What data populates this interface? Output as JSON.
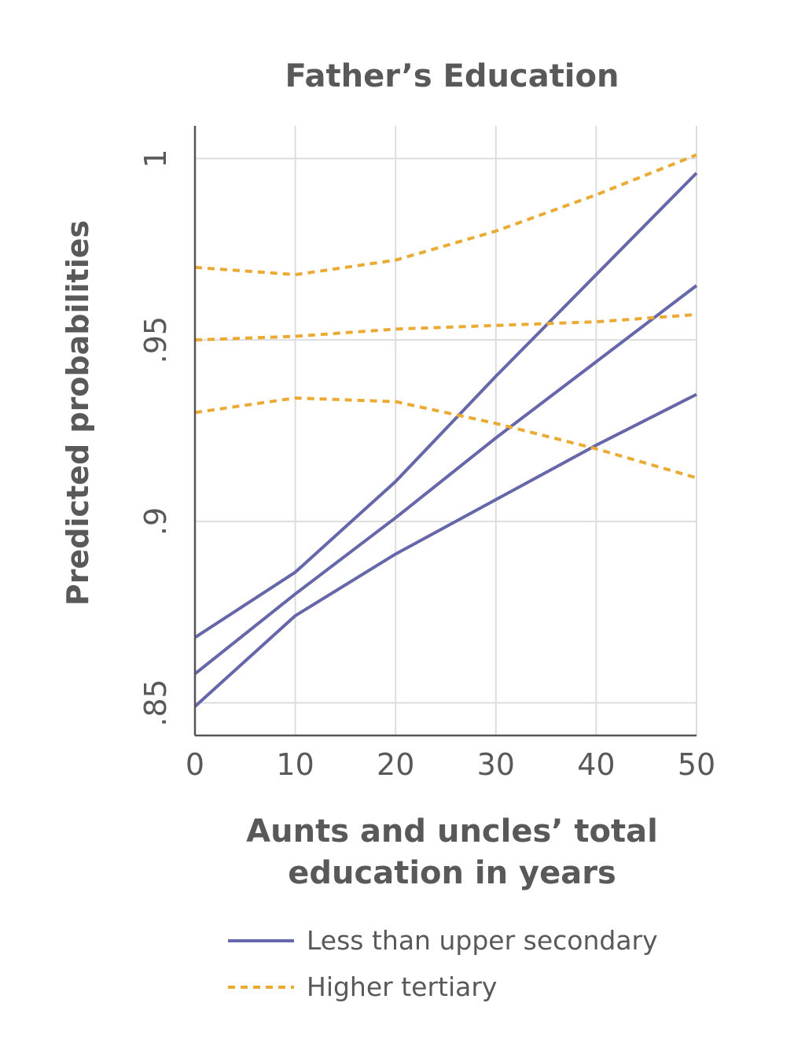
{
  "chart_data": {
    "type": "line",
    "title": "Father’s Education",
    "xlabel_lines": [
      "Aunts and uncles’ total",
      "education in years"
    ],
    "ylabel": "Predicted probabilities",
    "xlim": [
      0,
      50
    ],
    "ylim": [
      0.841,
      1.009
    ],
    "x_ticks": [
      0,
      10,
      20,
      30,
      40,
      50
    ],
    "x_tick_labels": [
      "0",
      "10",
      "20",
      "30",
      "40",
      "50"
    ],
    "y_ticks": [
      0.85,
      0.9,
      0.95,
      1
    ],
    "y_tick_labels": [
      ".85",
      ".9",
      ".95",
      "1"
    ],
    "grid": true,
    "legend_position": "bottom",
    "x": [
      0,
      10,
      20,
      30,
      40,
      50
    ],
    "series": [
      {
        "name": "Less than upper secondary",
        "style": "solid",
        "color": "#6666aa",
        "lines": [
          {
            "role": "upper",
            "values": [
              0.868,
              0.886,
              0.911,
              0.94,
              0.968,
              0.996
            ]
          },
          {
            "role": "estimate",
            "values": [
              0.858,
              0.88,
              0.901,
              0.923,
              0.944,
              0.965
            ]
          },
          {
            "role": "lower",
            "values": [
              0.849,
              0.874,
              0.891,
              0.906,
              0.921,
              0.935
            ]
          }
        ]
      },
      {
        "name": "Higher tertiary",
        "style": "dashed",
        "color": "#eaaa33",
        "lines": [
          {
            "role": "upper",
            "values": [
              0.97,
              0.968,
              0.972,
              0.98,
              0.99,
              1.001
            ]
          },
          {
            "role": "estimate",
            "values": [
              0.95,
              0.951,
              0.953,
              0.954,
              0.955,
              0.957
            ]
          },
          {
            "role": "lower",
            "values": [
              0.93,
              0.934,
              0.933,
              0.927,
              0.92,
              0.912
            ]
          }
        ]
      }
    ]
  }
}
